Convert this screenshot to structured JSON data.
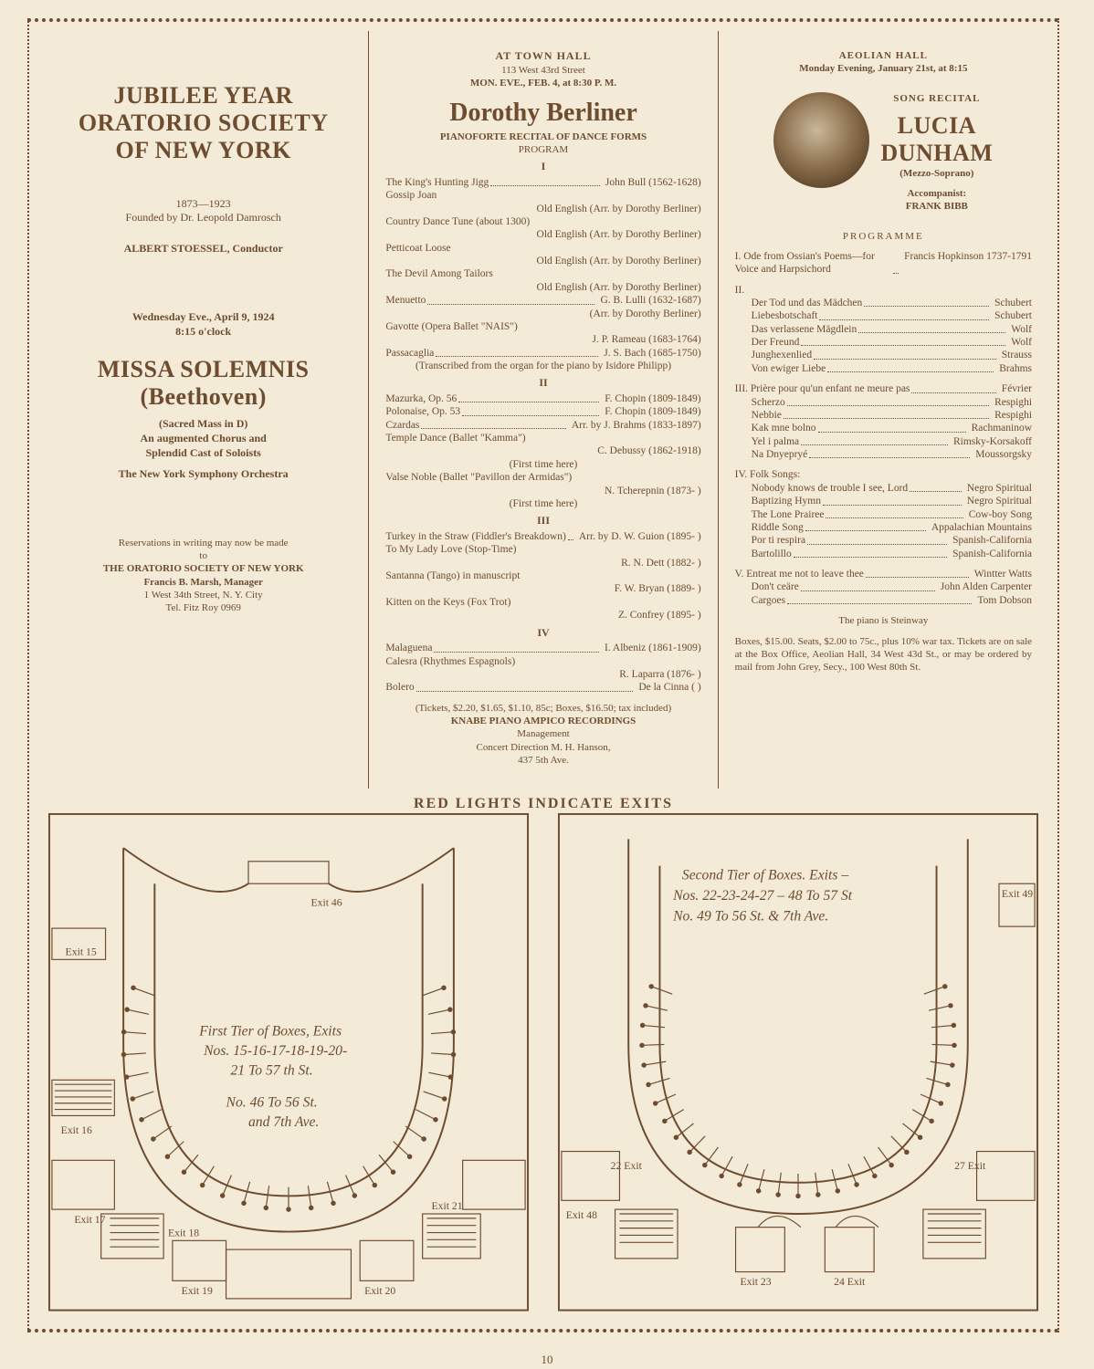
{
  "colors": {
    "ink": "#6d4c2f",
    "paper": "#f3ead7"
  },
  "page_number": "10",
  "col_left": {
    "title1": "JUBILEE YEAR",
    "title2": "ORATORIO SOCIETY",
    "title3": "OF NEW YORK",
    "years": "1873—1923",
    "founded": "Founded by Dr. Leopold Damrosch",
    "conductor": "ALBERT STOESSEL, Conductor",
    "date_line": "Wednesday Eve., April 9, 1924",
    "time_line": "8:15 o'clock",
    "work_title": "MISSA SOLEMNIS",
    "work_composer": "(Beethoven)",
    "work_sub": "(Sacred Mass in D)",
    "work_desc1": "An augmented Chorus and",
    "work_desc2": "Splendid Cast of Soloists",
    "orchestra": "The New York Symphony Orchestra",
    "reserve_line": "Reservations in writing may now be made",
    "reserve_to": "to",
    "org_line": "THE ORATORIO SOCIETY OF NEW YORK",
    "manager": "Francis B. Marsh, Manager",
    "address": "1 West 34th Street, N. Y. City",
    "phone": "Tel. Fitz Roy 0969"
  },
  "col_mid": {
    "venue": "AT TOWN HALL",
    "venue_addr": "113 West 43rd Street",
    "date": "MON. EVE., FEB. 4, at 8:30 P. M.",
    "name": "Dorothy Berliner",
    "subtitle": "PIANOFORTE RECITAL OF DANCE FORMS",
    "program_label": "PROGRAM",
    "sections": [
      {
        "label": "I",
        "items": [
          {
            "l": "The King's Hunting Jigg",
            "r": "John Bull (1562-1628)"
          },
          {
            "l": "Gossip Joan",
            "r": ""
          },
          {
            "l": "",
            "r": "Old English (Arr. by Dorothy Berliner)"
          },
          {
            "l": "Country Dance Tune (about 1300)",
            "r": ""
          },
          {
            "l": "",
            "r": "Old English (Arr. by Dorothy Berliner)"
          },
          {
            "l": "Petticoat Loose",
            "r": ""
          },
          {
            "l": "",
            "r": "Old English (Arr. by Dorothy Berliner)"
          },
          {
            "l": "The Devil Among Tailors",
            "r": ""
          },
          {
            "l": "",
            "r": "Old English (Arr. by Dorothy Berliner)"
          },
          {
            "l": "Menuetto",
            "r": "G. B. Lulli (1632-1687)"
          },
          {
            "l": "",
            "r": "(Arr. by Dorothy Berliner)"
          },
          {
            "l": "Gavotte (Opera Ballet \"NAIS\")",
            "r": ""
          },
          {
            "l": "",
            "r": "J. P. Rameau (1683-1764)"
          },
          {
            "l": "Passacaglia",
            "r": "J. S. Bach (1685-1750)"
          },
          {
            "l": "(Transcribed from the organ for the piano by Isidore Philipp)",
            "r": ""
          }
        ]
      },
      {
        "label": "II",
        "items": [
          {
            "l": "Mazurka, Op. 56",
            "r": "F. Chopin (1809-1849)"
          },
          {
            "l": "Polonaise, Op. 53",
            "r": "F. Chopin (1809-1849)"
          },
          {
            "l": "Czardas",
            "r": "Arr. by J. Brahms (1833-1897)"
          },
          {
            "l": "Temple Dance (Ballet \"Kamma\")",
            "r": ""
          },
          {
            "l": "",
            "r": "C. Debussy (1862-1918)"
          },
          {
            "l": "(First time here)",
            "r": ""
          },
          {
            "l": "Valse Noble (Ballet \"Pavillon der Armidas\")",
            "r": ""
          },
          {
            "l": "",
            "r": "N. Tcherepnin (1873-   )"
          },
          {
            "l": "(First time here)",
            "r": ""
          }
        ]
      },
      {
        "label": "III",
        "items": [
          {
            "l": "Turkey in the Straw (Fiddler's Breakdown)",
            "r": "Arr. by D. W. Guion (1895-   )"
          },
          {
            "l": "To My Lady Love (Stop-Time)",
            "r": ""
          },
          {
            "l": "",
            "r": "R. N. Dett (1882-   )"
          },
          {
            "l": "Santanna (Tango) in manuscript",
            "r": ""
          },
          {
            "l": "",
            "r": "F. W. Bryan (1889-   )"
          },
          {
            "l": "Kitten on the Keys (Fox Trot)",
            "r": ""
          },
          {
            "l": "",
            "r": "Z. Confrey (1895-   )"
          }
        ]
      },
      {
        "label": "IV",
        "items": [
          {
            "l": "Malaguena",
            "r": "I. Albeniz (1861-1909)"
          },
          {
            "l": "Calesra (Rhythmes Espagnols)",
            "r": ""
          },
          {
            "l": "",
            "r": "R. Laparra (1876-   )"
          },
          {
            "l": "Bolero",
            "r": "De la Cinna (        )"
          }
        ]
      }
    ],
    "tickets": "(Tickets, $2.20, $1.65, $1.10, 85c; Boxes, $16.50; tax included)",
    "piano": "KNABE PIANO   AMPICO RECORDINGS",
    "mgmt": "Management",
    "direction": "Concert Direction M. H. Hanson,",
    "dir_addr": "437 5th Ave."
  },
  "col_right": {
    "venue": "AEOLIAN HALL",
    "date": "Monday Evening, January 21st, at 8:15",
    "songrecital": "SONG RECITAL",
    "name1": "LUCIA",
    "name2": "DUNHAM",
    "voice": "(Mezzo-Soprano)",
    "acc_label": "Accompanist:",
    "acc_name": "FRANK BIBB",
    "programme": "PROGRAMME",
    "groups": [
      {
        "hdr": "I.",
        "text": "Ode from Ossian's Poems—for Voice and Harpsichord",
        "r": "Francis Hopkinson 1737-1791"
      },
      {
        "hdr": "II.",
        "lines": [
          {
            "l": "Der Tod und das Mädchen",
            "r": "Schubert"
          },
          {
            "l": "Liebesbotschaft",
            "r": "Schubert"
          },
          {
            "l": "Das verlassene Mägdlein",
            "r": "Wolf"
          },
          {
            "l": "Der Freund",
            "r": "Wolf"
          },
          {
            "l": "Junghexenlied",
            "r": "Strauss"
          },
          {
            "l": "Von ewiger Liebe",
            "r": "Brahms"
          }
        ]
      },
      {
        "hdr": "III.",
        "text": "Prière pour qu'un enfant ne meure pas",
        "r": "Février",
        "lines": [
          {
            "l": "Scherzo",
            "r": "Respighi"
          },
          {
            "l": "Nebbie",
            "r": "Respighi"
          },
          {
            "l": "Kak mne bolno",
            "r": "Rachmaninow"
          },
          {
            "l": "Yel i palma",
            "r": "Rimsky-Korsakoff"
          },
          {
            "l": "Na Dnyepryé",
            "r": "Moussorgsky"
          }
        ]
      },
      {
        "hdr": "IV.",
        "text": "Folk Songs:",
        "lines": [
          {
            "l": "Nobody knows de trouble I see, Lord",
            "r": "Negro Spiritual"
          },
          {
            "l": "Baptizing Hymn",
            "r": "Negro Spiritual"
          },
          {
            "l": "The Lone Prairee",
            "r": "Cow-boy Song"
          },
          {
            "l": "Riddle Song",
            "r": "Appalachian Mountains"
          },
          {
            "l": "Por ti respira",
            "r": "Spanish-California"
          },
          {
            "l": "Bartolillo",
            "r": "Spanish-California"
          }
        ]
      },
      {
        "hdr": "V.",
        "text": "Entreat me not to leave thee",
        "r": "Wintter Watts",
        "lines": [
          {
            "l": "Don't ceäre",
            "r": "John Alden Carpenter"
          },
          {
            "l": "Cargoes",
            "r": "Tom Dobson"
          }
        ]
      }
    ],
    "piano": "The piano is Steinway",
    "boxoffice": "Boxes, $15.00.  Seats, $2.00 to 75c., plus 10% war tax.  Tickets are on sale at the Box Office, Aeolian Hall, 34 West 43d St., or may be ordered by mail from John Grey, Secy., 100 West 80th St."
  },
  "diagram_title": "RED LIGHTS INDICATE EXITS",
  "diagram_first": {
    "heading1": "First Tier of Boxes, Exits",
    "heading2": "Nos. 15-16-17-18-19-20-",
    "heading3": "21 To 57 th St.",
    "heading4": "No. 46 To 56 St.",
    "heading5": "and 7th Ave.",
    "exits": {
      "e15": "Exit 15",
      "e16": "Exit 16",
      "e17": "Exit 17",
      "e18": "Exit 18",
      "e19": "Exit 19",
      "e20": "Exit 20",
      "e21": "Exit 21",
      "e46": "Exit 46"
    }
  },
  "diagram_second": {
    "heading1": "Second Tier of Boxes. Exits –",
    "heading2": "Nos. 22-23-24-27 – 48 To 57 St",
    "heading3": "No. 49 To 56 St. & 7th Ave.",
    "exits": {
      "e22": "22 Exit",
      "e23": "Exit 23",
      "e24": "24 Exit",
      "e27": "27 Exit",
      "e48": "Exit 48",
      "e49": "Exit 49"
    }
  }
}
